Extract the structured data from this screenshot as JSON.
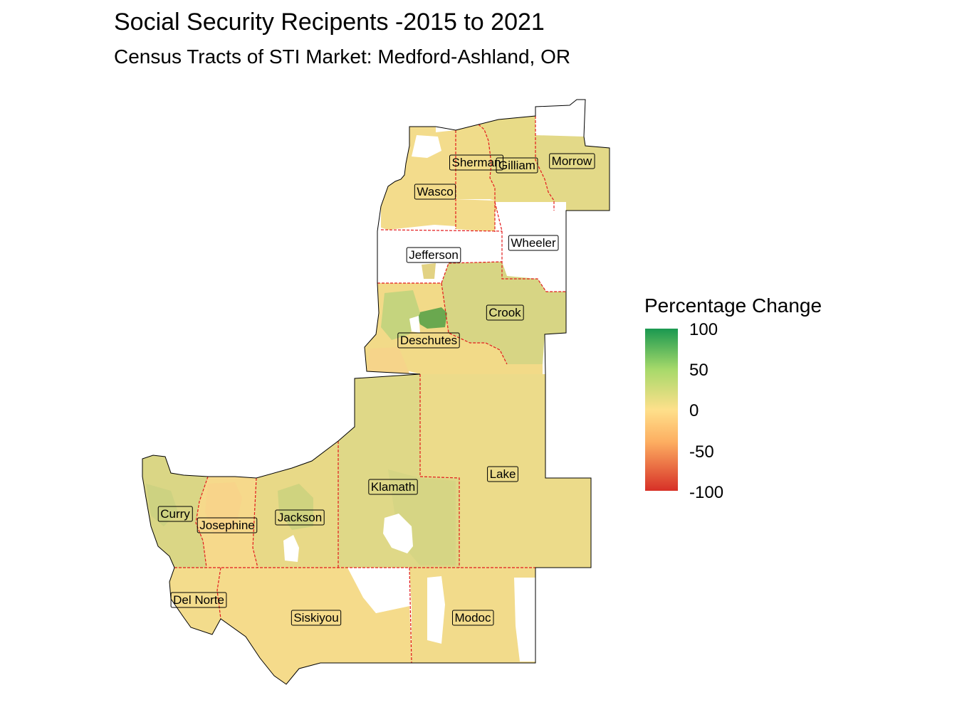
{
  "title": "Social Security Recipents -2015 to 2021",
  "subtitle": "Census Tracts of STI Market: Medford-Ashland, OR",
  "legend": {
    "title": "Percentage Change",
    "ticks": [
      "100",
      "50",
      "0",
      "-50",
      "-100"
    ],
    "range": [
      -100,
      100
    ],
    "colors": {
      "high": "#1a9850",
      "mid_high": "#a6d96a",
      "mid": "#fee08b",
      "mid_low": "#fdae61",
      "low": "#d73027"
    }
  },
  "map_style": {
    "county_border": "#e31a1c",
    "no_data": "#ffffff"
  },
  "counties": [
    {
      "name": "Sherman",
      "fill": "#f0dc8a"
    },
    {
      "name": "Gilliam",
      "fill": "#e8db87"
    },
    {
      "name": "Morrow",
      "fill": "#e3d988"
    },
    {
      "name": "Wasco",
      "fill": "#f3dc8c"
    },
    {
      "name": "Wheeler",
      "fill": "#ffffff"
    },
    {
      "name": "Jefferson",
      "fill": "#ffffff"
    },
    {
      "name": "Crook",
      "fill": "#d7d584"
    },
    {
      "name": "Deschutes",
      "fill": "#f2da88"
    },
    {
      "name": "Lake",
      "fill": "#ecdb8a"
    },
    {
      "name": "Klamath",
      "fill": "#dfd887"
    },
    {
      "name": "Curry",
      "fill": "#dad685"
    },
    {
      "name": "Josephine",
      "fill": "#f6d98b"
    },
    {
      "name": "Jackson",
      "fill": "#e8d987"
    },
    {
      "name": "Del Norte",
      "fill": "#f3dc8c"
    },
    {
      "name": "Siskiyou",
      "fill": "#f5db8b"
    },
    {
      "name": "Modoc",
      "fill": "#f2db8b"
    }
  ]
}
